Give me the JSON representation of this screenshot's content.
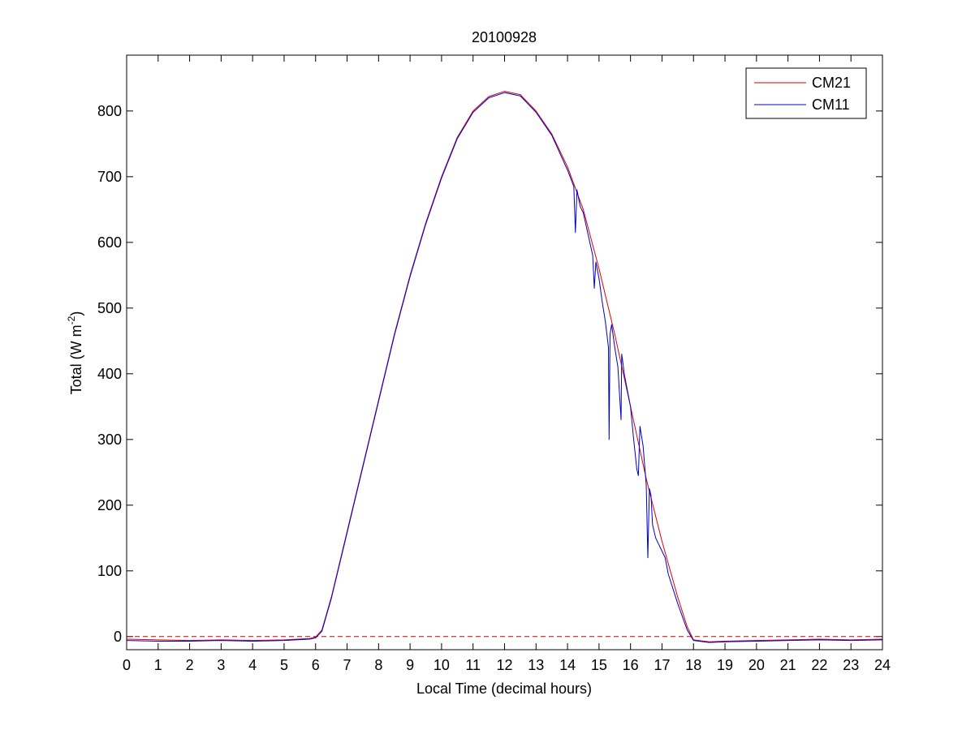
{
  "chart_data": {
    "type": "line",
    "title": "20100928",
    "xlabel": "Local Time (decimal hours)",
    "ylabel_parts": {
      "main": "Total (W m",
      "superscript": "-2",
      "close": ")"
    },
    "xlim": [
      0,
      24
    ],
    "ylim": [
      -20,
      885
    ],
    "x_ticks": [
      0,
      1,
      2,
      3,
      4,
      5,
      6,
      7,
      8,
      9,
      10,
      11,
      12,
      13,
      14,
      15,
      16,
      17,
      18,
      19,
      20,
      21,
      22,
      23,
      24
    ],
    "x_tick_labels": [
      "0",
      "1",
      "2",
      "3",
      "4",
      "5",
      "6",
      "7",
      "8",
      "9",
      "10",
      "11",
      "12",
      "13",
      "14",
      "15",
      "16",
      "17",
      "18",
      "19",
      "20",
      "21",
      "22",
      "23",
      "24"
    ],
    "y_ticks": [
      0,
      100,
      200,
      300,
      400,
      500,
      600,
      700,
      800
    ],
    "y_tick_labels": [
      "0",
      "100",
      "200",
      "300",
      "400",
      "500",
      "600",
      "700",
      "800"
    ],
    "grid": false,
    "legend_position": "top-right",
    "reference_line": {
      "y": 0,
      "style": "dashed",
      "color": "#cc0000"
    },
    "series": [
      {
        "name": "CM21",
        "color": "#e00000",
        "x": [
          0,
          1,
          2,
          3,
          4,
          5,
          5.8,
          6.0,
          6.2,
          6.5,
          7,
          7.5,
          8,
          8.5,
          9,
          9.5,
          10,
          10.5,
          11,
          11.5,
          12,
          12.5,
          13,
          13.5,
          14,
          14.5,
          15,
          15.5,
          16,
          16.5,
          17,
          17.5,
          17.8,
          18,
          18.5,
          19,
          20,
          21,
          22,
          23,
          24
        ],
        "y": [
          -4,
          -5,
          -6,
          -5,
          -6,
          -5,
          -3,
          -1,
          10,
          60,
          160,
          260,
          360,
          460,
          550,
          630,
          700,
          760,
          800,
          822,
          830,
          825,
          800,
          765,
          715,
          650,
          560,
          460,
          350,
          240,
          145,
          60,
          15,
          -5,
          -8,
          -7,
          -6,
          -5,
          -4,
          -5,
          -4
        ]
      },
      {
        "name": "CM11",
        "color": "#0000cc",
        "x": [
          0,
          1,
          2,
          3,
          4,
          5,
          5.8,
          6.0,
          6.2,
          6.5,
          7,
          7.5,
          8,
          8.5,
          9,
          9.5,
          10,
          10.5,
          11,
          11.5,
          12,
          12.5,
          13,
          13.5,
          14,
          14.2,
          14.25,
          14.3,
          14.4,
          14.5,
          14.8,
          14.85,
          14.9,
          15,
          15.1,
          15.2,
          15.3,
          15.32,
          15.35,
          15.4,
          15.5,
          15.6,
          15.7,
          15.72,
          15.75,
          15.8,
          16,
          16.1,
          16.2,
          16.25,
          16.3,
          16.4,
          16.5,
          16.55,
          16.6,
          16.65,
          16.7,
          16.8,
          16.9,
          17,
          17.1,
          17.2,
          17.5,
          17.8,
          18,
          18.5,
          19,
          20,
          21,
          22,
          23,
          24
        ],
        "y": [
          -6,
          -7,
          -7,
          -6,
          -7,
          -6,
          -4,
          -2,
          8,
          58,
          158,
          258,
          358,
          458,
          548,
          628,
          698,
          758,
          798,
          820,
          828,
          823,
          798,
          763,
          710,
          685,
          615,
          680,
          655,
          645,
          580,
          530,
          570,
          545,
          510,
          480,
          440,
          300,
          460,
          475,
          440,
          410,
          330,
          430,
          420,
          400,
          350,
          300,
          255,
          245,
          320,
          290,
          230,
          120,
          225,
          215,
          170,
          150,
          140,
          130,
          120,
          95,
          50,
          10,
          -6,
          -9,
          -8,
          -7,
          -6,
          -5,
          -6,
          -5
        ]
      }
    ]
  }
}
